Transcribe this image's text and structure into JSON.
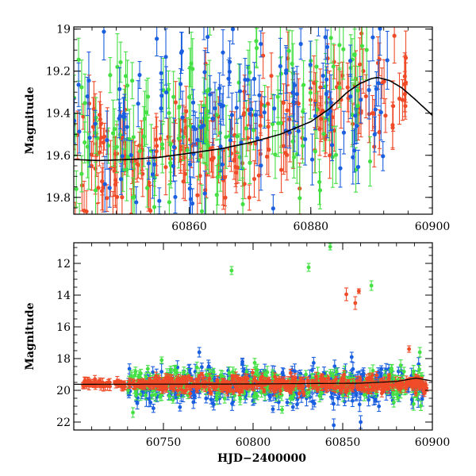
{
  "chart_data": [
    {
      "type": "scatter",
      "panel": "top",
      "xlabel": "",
      "ylabel": "Magnitude",
      "xlim": [
        60841,
        60900
      ],
      "ylim": [
        19.88,
        18.99
      ],
      "y_inverted": true,
      "xticks": [
        60860,
        60880,
        60900
      ],
      "yticks": [
        19,
        19.2,
        19.4,
        19.6,
        19.8
      ],
      "xtick_labels": [
        "60860",
        "60880",
        "60900"
      ],
      "ytick_labels": [
        "19",
        "19.2",
        "19.4",
        "19.6",
        "19.8"
      ],
      "grid": false,
      "colors": {
        "blue": "#1a5fe0",
        "green": "#44e044",
        "red": "#f04b28",
        "model": "#000000"
      },
      "series": [
        {
          "color": "red",
          "x_range": [
            60841,
            60896
          ],
          "y_trend": [
            [
              60841,
              19.62
            ],
            [
              60860,
              19.6
            ],
            [
              60875,
              19.48
            ],
            [
              60885,
              19.36
            ],
            [
              60895,
              19.25
            ]
          ],
          "scatter": 0.14,
          "err": [
            0.06,
            0.14
          ]
        },
        {
          "color": "green",
          "x_range": [
            60841,
            60890
          ],
          "y_trend": [
            [
              60841,
              19.55
            ],
            [
              60860,
              19.48
            ],
            [
              60880,
              19.4
            ],
            [
              60890,
              19.3
            ]
          ],
          "scatter": 0.22,
          "err": [
            0.08,
            0.16
          ]
        },
        {
          "color": "blue",
          "x_range": [
            60841,
            60893
          ],
          "y_trend": [
            [
              60841,
              19.55
            ],
            [
              60860,
              19.48
            ],
            [
              60880,
              19.4
            ],
            [
              60893,
              19.3
            ]
          ],
          "scatter": 0.25,
          "err": [
            0.06,
            0.14
          ]
        }
      ],
      "model_curve": [
        [
          60841,
          19.62
        ],
        [
          60845,
          19.625
        ],
        [
          60850,
          19.62
        ],
        [
          60855,
          19.61
        ],
        [
          60860,
          19.59
        ],
        [
          60865,
          19.57
        ],
        [
          60870,
          19.54
        ],
        [
          60875,
          19.5
        ],
        [
          60880,
          19.44
        ],
        [
          60883,
          19.38
        ],
        [
          60886,
          19.3
        ],
        [
          60888,
          19.26
        ],
        [
          60890,
          19.235
        ],
        [
          60891,
          19.23
        ],
        [
          60893,
          19.245
        ],
        [
          60895,
          19.28
        ],
        [
          60897,
          19.33
        ],
        [
          60900,
          19.41
        ]
      ]
    },
    {
      "type": "scatter",
      "panel": "bottom",
      "xlabel": "HJD−2400000",
      "ylabel": "Magnitude",
      "xlim": [
        60700,
        60900
      ],
      "ylim": [
        22.5,
        10.7
      ],
      "y_inverted": true,
      "xticks": [
        60750,
        60800,
        60850,
        60900
      ],
      "yticks": [
        12,
        14,
        16,
        18,
        20,
        22
      ],
      "xtick_labels": [
        "60750",
        "60800",
        "60850",
        "60900"
      ],
      "ytick_labels": [
        "12",
        "14",
        "16",
        "18",
        "20",
        "22"
      ],
      "grid": false,
      "colors": {
        "blue": "#1a5fe0",
        "green": "#44e044",
        "red": "#f04b28",
        "model": "#000000"
      },
      "series": [
        {
          "color": "blue",
          "x_range": [
            60730,
            60895
          ],
          "y_center": 19.75,
          "scatter": 0.55,
          "err": [
            0.2,
            0.5
          ]
        },
        {
          "color": "green",
          "x_range": [
            60730,
            60895
          ],
          "y_center": 19.6,
          "scatter": 0.5,
          "err": [
            0.2,
            0.4
          ]
        },
        {
          "color": "red",
          "x_range": [
            60705,
            60897
          ],
          "y_center": 19.6,
          "scatter": 0.25,
          "err": [
            0.1,
            0.3
          ]
        }
      ],
      "outliers": [
        {
          "color": "green",
          "x": 60843,
          "y": 10.95,
          "err": 0.2
        },
        {
          "color": "green",
          "x": 60788,
          "y": 12.45,
          "err": 0.25
        },
        {
          "color": "green",
          "x": 60831,
          "y": 12.25,
          "err": 0.25
        },
        {
          "color": "green",
          "x": 60866,
          "y": 13.4,
          "err": 0.3
        },
        {
          "color": "red",
          "x": 60857,
          "y": 14.5,
          "err": 0.4
        },
        {
          "color": "red",
          "x": 60859,
          "y": 13.75,
          "err": 0.15
        },
        {
          "color": "red",
          "x": 60852,
          "y": 13.95,
          "err": 0.4
        },
        {
          "color": "red",
          "x": 60887,
          "y": 17.4,
          "err": 0.2
        },
        {
          "color": "green",
          "x": 60893,
          "y": 17.6,
          "err": 0.3
        },
        {
          "color": "green",
          "x": 60749,
          "y": 18.1,
          "err": 0.2
        },
        {
          "color": "blue",
          "x": 60770,
          "y": 17.6,
          "err": 0.3
        },
        {
          "color": "blue",
          "x": 60855,
          "y": 17.9,
          "err": 0.3
        },
        {
          "color": "green",
          "x": 60733,
          "y": 21.4,
          "err": 0.3
        },
        {
          "color": "blue",
          "x": 60845,
          "y": 22.2,
          "err": 0.4
        },
        {
          "color": "blue",
          "x": 60860,
          "y": 22.0,
          "err": 0.4
        }
      ],
      "model_curve": [
        [
          60700,
          19.62
        ],
        [
          60800,
          19.6
        ],
        [
          60860,
          19.55
        ],
        [
          60880,
          19.44
        ],
        [
          60891,
          19.23
        ],
        [
          60900,
          19.41
        ]
      ]
    }
  ]
}
